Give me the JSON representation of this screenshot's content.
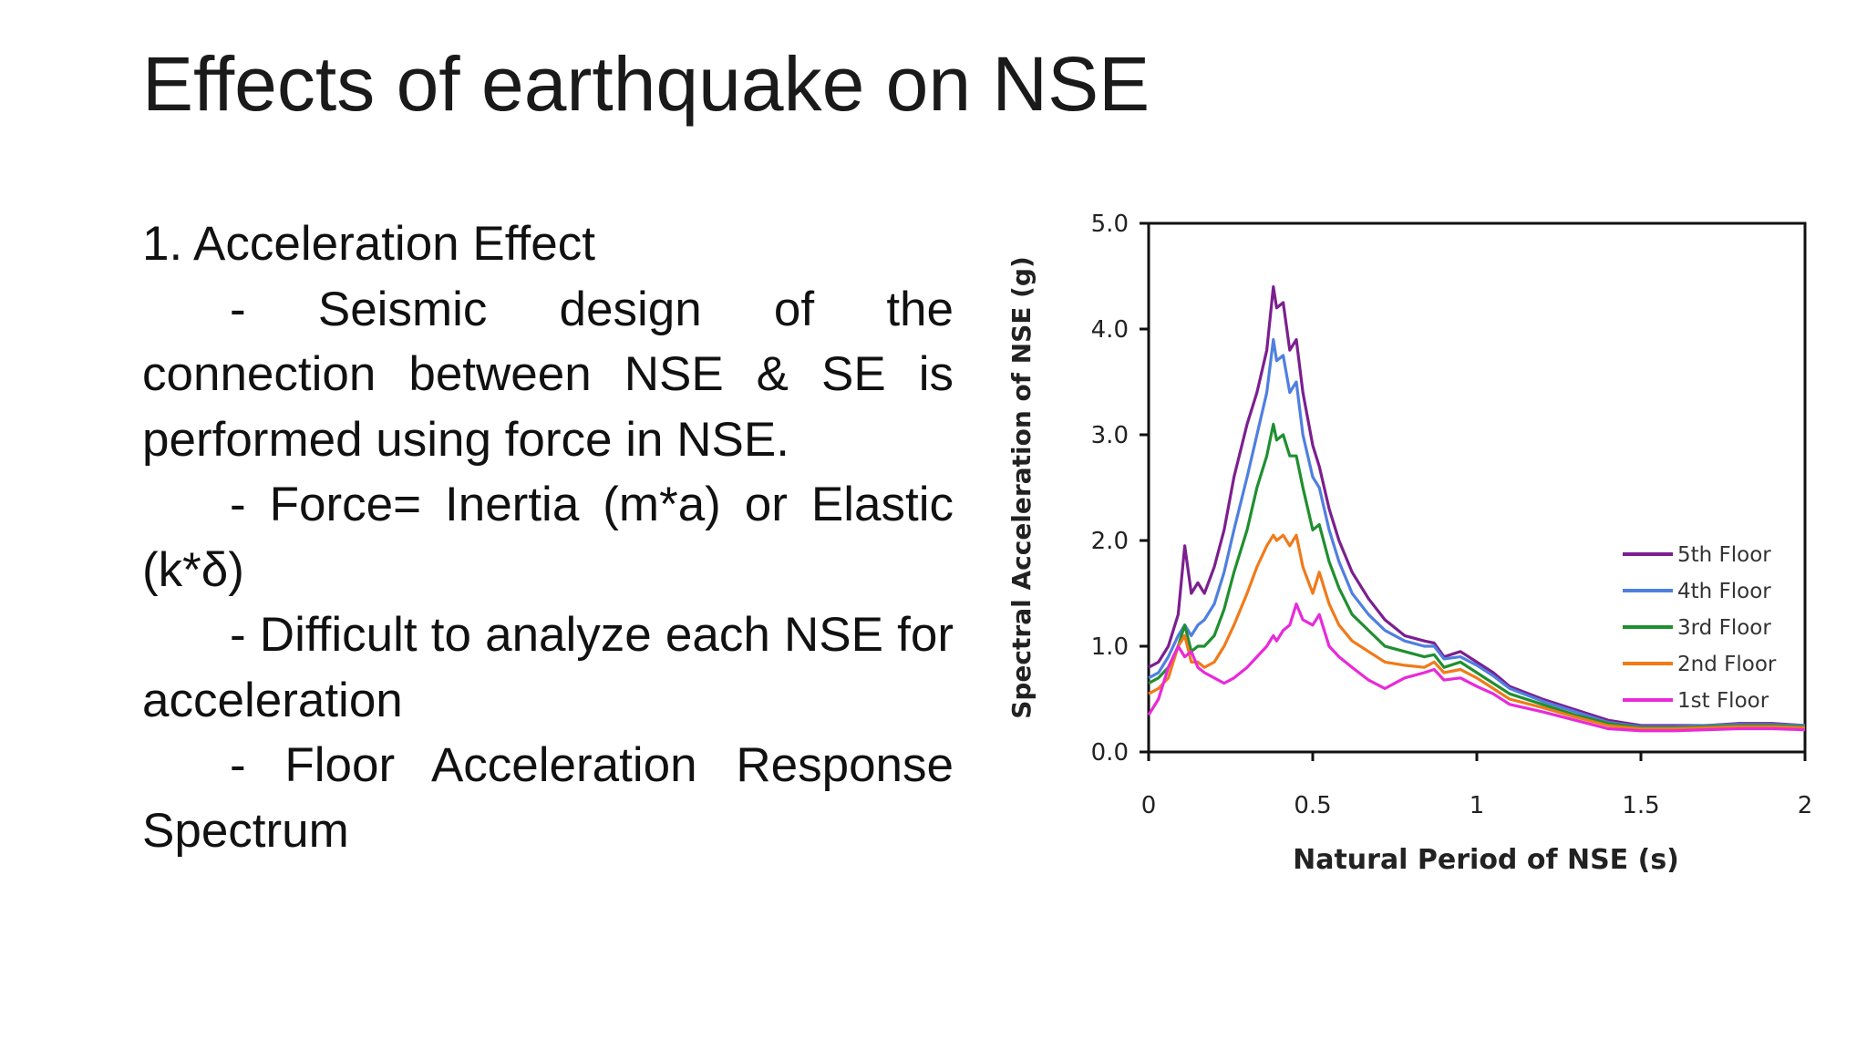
{
  "slide": {
    "title": "Effects of earthquake on NSE",
    "heading": "1. Acceleration Effect",
    "bullets": [
      "- Seismic design of the connection between NSE & SE is performed using force in NSE.",
      "- Force= Inertia (m*a) or Elastic (k*δ)",
      "- Difficult to analyze each NSE for acceleration",
      "- Floor Acceleration Response Spectrum"
    ]
  },
  "chart_data": {
    "type": "line",
    "xlabel": "Natural Period of NSE (s)",
    "ylabel": "Spectral Acceleration of NSE (g)",
    "xlim": [
      0,
      2
    ],
    "ylim": [
      0,
      5
    ],
    "xticks": [
      "0",
      "0.5",
      "1",
      "1.5",
      "2"
    ],
    "yticks": [
      "0.0",
      "1.0",
      "2.0",
      "3.0",
      "4.0",
      "5.0"
    ],
    "legend_position": "right",
    "grid": false,
    "series": [
      {
        "name": "5th Floor",
        "color": "#7b1f8f",
        "x": [
          0,
          0.03,
          0.06,
          0.09,
          0.11,
          0.13,
          0.15,
          0.17,
          0.2,
          0.23,
          0.26,
          0.3,
          0.33,
          0.36,
          0.38,
          0.39,
          0.41,
          0.43,
          0.45,
          0.47,
          0.5,
          0.52,
          0.55,
          0.58,
          0.62,
          0.67,
          0.72,
          0.78,
          0.84,
          0.87,
          0.9,
          0.95,
          1.0,
          1.05,
          1.1,
          1.2,
          1.3,
          1.4,
          1.5,
          1.6,
          1.7,
          1.8,
          1.9,
          2.0
        ],
        "y": [
          0.8,
          0.85,
          1.0,
          1.3,
          1.95,
          1.5,
          1.6,
          1.5,
          1.75,
          2.1,
          2.6,
          3.1,
          3.4,
          3.8,
          4.4,
          4.2,
          4.25,
          3.8,
          3.9,
          3.4,
          2.9,
          2.7,
          2.3,
          2.0,
          1.7,
          1.45,
          1.25,
          1.1,
          1.05,
          1.03,
          0.9,
          0.95,
          0.85,
          0.75,
          0.62,
          0.5,
          0.4,
          0.3,
          0.25,
          0.25,
          0.25,
          0.27,
          0.27,
          0.25
        ]
      },
      {
        "name": "4th Floor",
        "color": "#4f7fe0",
        "x": [
          0,
          0.03,
          0.06,
          0.09,
          0.11,
          0.13,
          0.15,
          0.17,
          0.2,
          0.23,
          0.26,
          0.3,
          0.33,
          0.36,
          0.38,
          0.39,
          0.41,
          0.43,
          0.45,
          0.47,
          0.5,
          0.52,
          0.55,
          0.58,
          0.62,
          0.67,
          0.72,
          0.78,
          0.84,
          0.87,
          0.9,
          0.95,
          1.0,
          1.05,
          1.1,
          1.2,
          1.3,
          1.4,
          1.5,
          1.6,
          1.7,
          1.8,
          1.9,
          2.0
        ],
        "y": [
          0.7,
          0.75,
          0.9,
          1.1,
          1.2,
          1.1,
          1.2,
          1.25,
          1.4,
          1.7,
          2.1,
          2.6,
          3.0,
          3.4,
          3.9,
          3.7,
          3.75,
          3.4,
          3.5,
          3.0,
          2.6,
          2.5,
          2.1,
          1.8,
          1.5,
          1.3,
          1.15,
          1.05,
          1.0,
          1.0,
          0.88,
          0.9,
          0.82,
          0.72,
          0.6,
          0.48,
          0.38,
          0.28,
          0.24,
          0.24,
          0.25,
          0.26,
          0.26,
          0.25
        ]
      },
      {
        "name": "3rd Floor",
        "color": "#1f8f2f",
        "x": [
          0,
          0.03,
          0.06,
          0.09,
          0.11,
          0.13,
          0.15,
          0.17,
          0.2,
          0.23,
          0.26,
          0.3,
          0.33,
          0.36,
          0.38,
          0.39,
          0.41,
          0.43,
          0.45,
          0.47,
          0.5,
          0.52,
          0.55,
          0.58,
          0.62,
          0.67,
          0.72,
          0.78,
          0.84,
          0.87,
          0.9,
          0.95,
          1.0,
          1.05,
          1.1,
          1.2,
          1.3,
          1.4,
          1.5,
          1.6,
          1.7,
          1.8,
          1.9,
          2.0
        ],
        "y": [
          0.65,
          0.7,
          0.8,
          1.0,
          1.2,
          0.95,
          1.0,
          1.0,
          1.1,
          1.35,
          1.7,
          2.1,
          2.5,
          2.8,
          3.1,
          2.95,
          3.0,
          2.8,
          2.8,
          2.5,
          2.1,
          2.15,
          1.8,
          1.55,
          1.3,
          1.15,
          1.0,
          0.95,
          0.9,
          0.92,
          0.8,
          0.85,
          0.75,
          0.65,
          0.55,
          0.45,
          0.35,
          0.27,
          0.23,
          0.23,
          0.24,
          0.25,
          0.25,
          0.24
        ]
      },
      {
        "name": "2nd Floor",
        "color": "#f07a1a",
        "x": [
          0,
          0.03,
          0.06,
          0.09,
          0.11,
          0.13,
          0.15,
          0.17,
          0.2,
          0.23,
          0.26,
          0.3,
          0.33,
          0.36,
          0.38,
          0.39,
          0.41,
          0.43,
          0.45,
          0.47,
          0.5,
          0.52,
          0.55,
          0.58,
          0.62,
          0.67,
          0.72,
          0.78,
          0.84,
          0.87,
          0.9,
          0.95,
          1.0,
          1.05,
          1.1,
          1.2,
          1.3,
          1.4,
          1.5,
          1.6,
          1.7,
          1.8,
          1.9,
          2.0
        ],
        "y": [
          0.55,
          0.6,
          0.7,
          1.0,
          1.1,
          0.85,
          0.85,
          0.8,
          0.85,
          1.0,
          1.2,
          1.5,
          1.75,
          1.95,
          2.05,
          2.0,
          2.05,
          1.95,
          2.05,
          1.75,
          1.5,
          1.7,
          1.4,
          1.2,
          1.05,
          0.95,
          0.85,
          0.82,
          0.8,
          0.85,
          0.75,
          0.78,
          0.7,
          0.6,
          0.5,
          0.42,
          0.33,
          0.25,
          0.22,
          0.22,
          0.23,
          0.24,
          0.24,
          0.23
        ]
      },
      {
        "name": "1st Floor",
        "color": "#e82ad8",
        "x": [
          0,
          0.03,
          0.06,
          0.09,
          0.11,
          0.13,
          0.15,
          0.17,
          0.2,
          0.23,
          0.26,
          0.3,
          0.33,
          0.36,
          0.38,
          0.39,
          0.41,
          0.43,
          0.45,
          0.47,
          0.5,
          0.52,
          0.55,
          0.58,
          0.62,
          0.67,
          0.72,
          0.78,
          0.84,
          0.87,
          0.9,
          0.95,
          1.0,
          1.05,
          1.1,
          1.2,
          1.3,
          1.4,
          1.5,
          1.6,
          1.7,
          1.8,
          1.9,
          2.0
        ],
        "y": [
          0.35,
          0.5,
          0.8,
          1.0,
          0.9,
          0.95,
          0.8,
          0.75,
          0.7,
          0.65,
          0.7,
          0.8,
          0.9,
          1.0,
          1.1,
          1.05,
          1.15,
          1.2,
          1.4,
          1.25,
          1.2,
          1.3,
          1.0,
          0.9,
          0.8,
          0.68,
          0.6,
          0.7,
          0.75,
          0.78,
          0.68,
          0.7,
          0.62,
          0.55,
          0.45,
          0.38,
          0.3,
          0.22,
          0.2,
          0.2,
          0.21,
          0.22,
          0.22,
          0.21
        ]
      }
    ]
  }
}
